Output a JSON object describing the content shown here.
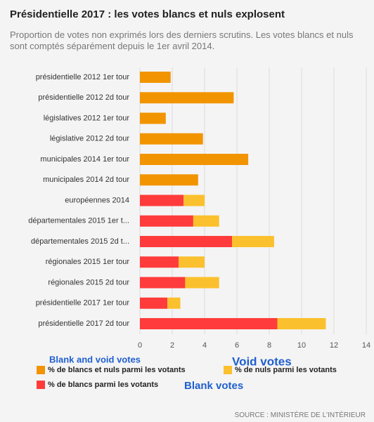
{
  "chart_data": {
    "type": "bar",
    "orientation": "horizontal",
    "stacked": true,
    "title": "Présidentielle 2017 : les votes blancs et nuls explosent",
    "subtitle": "Proportion de votes non exprimés lors des derniers scrutins. Les votes blancs et nuls sont comptés séparément depuis le 1er avril 2014.",
    "source": "SOURCE : MINISTÈRE DE L'INTÉRIEUR",
    "categories": [
      "présidentielle 2012 1er tour",
      "présidentielle 2012 2d tour",
      "législatives 2012 1er tour",
      "législative 2012 2d tour",
      "municipales 2014 1er tour",
      "municipales 2014 2d tour",
      "européennes 2014",
      "départementales 2015 1er t...",
      "départementales 2015 2d t...",
      "régionales 2015 1er tour",
      "régionales 2015 2d tour",
      "présidentielle 2017 1er tour",
      "présidentielle 2017 2d tour"
    ],
    "series": [
      {
        "name": "% de blancs et nuls parmi les votants",
        "color": "#f29400",
        "values": [
          1.9,
          5.8,
          1.6,
          3.9,
          6.7,
          3.6,
          null,
          null,
          null,
          null,
          null,
          null,
          null
        ]
      },
      {
        "name": "% de blancs parmi les votants",
        "color": "#ff3b3b",
        "values": [
          null,
          null,
          null,
          null,
          null,
          null,
          2.7,
          3.3,
          5.7,
          2.4,
          2.8,
          1.7,
          8.5
        ]
      },
      {
        "name": "% de nuls parmi les votants",
        "color": "#fbc02d",
        "values": [
          null,
          null,
          null,
          null,
          null,
          null,
          1.3,
          1.6,
          2.6,
          1.6,
          2.1,
          0.8,
          3.0
        ]
      }
    ],
    "xlim": [
      0,
      14
    ],
    "xticks": [
      0,
      2,
      4,
      6,
      8,
      10,
      12,
      14
    ],
    "grid": true,
    "annotations": [
      "Blank and void votes",
      "Void votes",
      "Blank votes"
    ]
  }
}
